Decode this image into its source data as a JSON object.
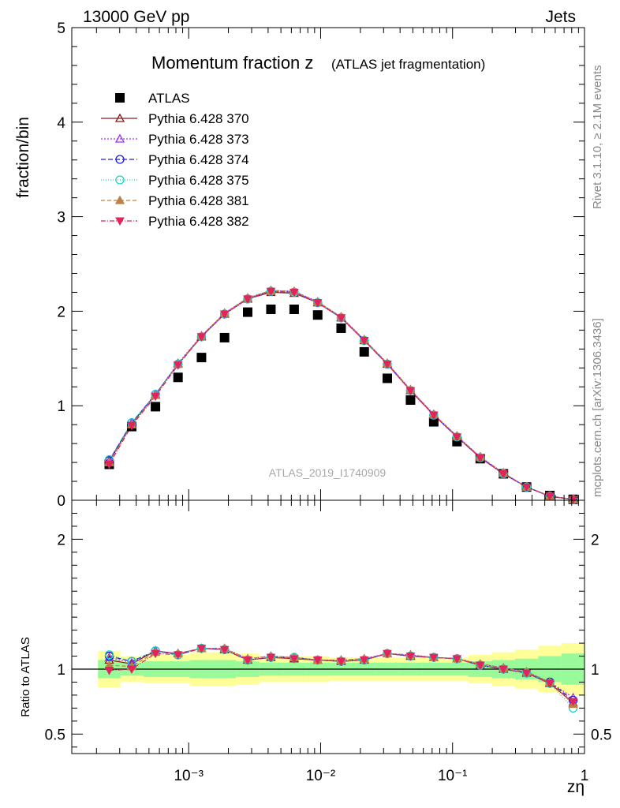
{
  "header": {
    "left": "13000 GeV pp",
    "right": "Jets",
    "side_top": "Rivet 3.1.10, ≥ 2.1M events",
    "side_bottom": "mcplots.cern.ch [arXiv:1306.3436]"
  },
  "colors": {
    "data": "#000000",
    "p370": "#8b1a1a",
    "p373": "#9b30ff",
    "p374": "#1c1ce0",
    "p375": "#11d6c4",
    "p381": "#b98348",
    "p382": "#e3245c",
    "band_inner": "#98fa98",
    "band_outer": "#ffff99"
  },
  "chart_data": [
    {
      "type": "scatter",
      "title": "Momentum fraction z",
      "title_suffix": "(ATLAS jet fragmentation)",
      "ylabel": "fraction/bin",
      "xlabel": "zη",
      "watermark": "ATLAS_2019_I1740909",
      "xscale": "log",
      "xlim": [
        0.00013,
        1
      ],
      "ylim": [
        0,
        5
      ],
      "yticks": [
        "0",
        "1",
        "2",
        "3",
        "4",
        "5"
      ],
      "xticks": [
        "10⁻³",
        "10⁻²",
        "10⁻¹",
        "1"
      ],
      "legend_position": "top-left",
      "x": [
        0.00025,
        0.00037,
        0.00056,
        0.00083,
        0.00125,
        0.00187,
        0.0028,
        0.0042,
        0.0063,
        0.0095,
        0.0143,
        0.0214,
        0.032,
        0.048,
        0.072,
        0.108,
        0.162,
        0.243,
        0.364,
        0.546,
        0.82
      ],
      "series": [
        {
          "name": "ATLAS",
          "key": "data",
          "marker": "square",
          "values": [
            0.38,
            0.78,
            0.99,
            1.3,
            1.51,
            1.72,
            1.99,
            2.02,
            2.02,
            1.96,
            1.82,
            1.57,
            1.29,
            1.06,
            0.83,
            0.62,
            0.44,
            0.28,
            0.14,
            0.05,
            0.01
          ]
        },
        {
          "name": "Pythia 6.428 370",
          "key": "p370",
          "marker": "triangle-open",
          "dash": "",
          "values": [
            0.41,
            0.81,
            1.12,
            1.44,
            1.73,
            1.97,
            2.13,
            2.2,
            2.19,
            2.09,
            1.93,
            1.69,
            1.44,
            1.16,
            0.9,
            0.67,
            0.45,
            0.28,
            0.14,
            0.04,
            0.008
          ]
        },
        {
          "name": "Pythia 6.428 373",
          "key": "p373",
          "marker": "triangle-open",
          "dash": "2,2",
          "values": [
            0.42,
            0.82,
            1.12,
            1.45,
            1.74,
            1.98,
            2.14,
            2.22,
            2.21,
            2.1,
            1.94,
            1.7,
            1.45,
            1.17,
            0.91,
            0.68,
            0.46,
            0.29,
            0.14,
            0.045,
            0.008
          ]
        },
        {
          "name": "Pythia 6.428 374",
          "key": "p374",
          "marker": "circle-open",
          "dash": "6,3",
          "values": [
            0.42,
            0.82,
            1.12,
            1.44,
            1.73,
            1.97,
            2.13,
            2.21,
            2.2,
            2.09,
            1.93,
            1.69,
            1.44,
            1.16,
            0.9,
            0.67,
            0.45,
            0.28,
            0.14,
            0.045,
            0.008
          ]
        },
        {
          "name": "Pythia 6.428 375",
          "key": "p375",
          "marker": "circle-open",
          "dash": "1,2",
          "values": [
            0.43,
            0.82,
            1.12,
            1.44,
            1.73,
            1.97,
            2.13,
            2.21,
            2.2,
            2.09,
            1.93,
            1.69,
            1.44,
            1.16,
            0.9,
            0.67,
            0.45,
            0.28,
            0.14,
            0.044,
            0.007
          ]
        },
        {
          "name": "Pythia 6.428 381",
          "key": "p381",
          "marker": "triangle-filled",
          "dash": "5,3",
          "values": [
            0.4,
            0.8,
            1.11,
            1.44,
            1.74,
            1.98,
            2.14,
            2.22,
            2.21,
            2.1,
            1.94,
            1.7,
            1.45,
            1.17,
            0.91,
            0.68,
            0.46,
            0.29,
            0.14,
            0.044,
            0.008
          ]
        },
        {
          "name": "Pythia 6.428 382",
          "key": "p382",
          "marker": "triangle-down-filled",
          "dash": "6,2,1,2",
          "values": [
            0.38,
            0.79,
            1.1,
            1.43,
            1.73,
            1.97,
            2.13,
            2.21,
            2.2,
            2.09,
            1.93,
            1.69,
            1.44,
            1.16,
            0.9,
            0.67,
            0.45,
            0.28,
            0.14,
            0.044,
            0.008
          ]
        }
      ]
    },
    {
      "type": "scatter",
      "ylabel": "Ratio to ATLAS",
      "xlabel": "zη",
      "xscale": "log",
      "xlim": [
        0.00013,
        1
      ],
      "ylim": [
        0.35,
        2.3
      ],
      "yticks": [
        "0.5",
        "1",
        "2"
      ],
      "reference_line": 1,
      "bands": {
        "inner": [
          0.07,
          0.05,
          0.06,
          0.06,
          0.07,
          0.07,
          0.06,
          0.05,
          0.05,
          0.05,
          0.05,
          0.05,
          0.05,
          0.05,
          0.05,
          0.05,
          0.06,
          0.07,
          0.08,
          0.1,
          0.12
        ],
        "outer": [
          0.14,
          0.1,
          0.11,
          0.11,
          0.13,
          0.13,
          0.12,
          0.1,
          0.1,
          0.1,
          0.09,
          0.09,
          0.09,
          0.09,
          0.09,
          0.09,
          0.11,
          0.13,
          0.15,
          0.18,
          0.2
        ]
      },
      "series": [
        {
          "name": "Pythia 6.428 370",
          "key": "p370",
          "marker": "triangle-open",
          "dash": "",
          "values": [
            1.07,
            1.04,
            1.14,
            1.12,
            1.16,
            1.15,
            1.07,
            1.09,
            1.08,
            1.07,
            1.06,
            1.07,
            1.12,
            1.1,
            1.09,
            1.08,
            1.03,
            1.0,
            0.97,
            0.89,
            0.74
          ]
        },
        {
          "name": "Pythia 6.428 373",
          "key": "p373",
          "marker": "triangle-open",
          "dash": "2,2",
          "values": [
            1.09,
            1.05,
            1.14,
            1.12,
            1.16,
            1.16,
            1.08,
            1.1,
            1.09,
            1.07,
            1.07,
            1.08,
            1.12,
            1.11,
            1.09,
            1.08,
            1.04,
            1.01,
            0.98,
            0.9,
            0.78
          ]
        },
        {
          "name": "Pythia 6.428 374",
          "key": "p374",
          "marker": "circle-open",
          "dash": "6,3",
          "values": [
            1.1,
            1.06,
            1.14,
            1.11,
            1.16,
            1.15,
            1.07,
            1.09,
            1.09,
            1.07,
            1.06,
            1.07,
            1.12,
            1.1,
            1.09,
            1.08,
            1.03,
            1.0,
            0.97,
            0.9,
            0.76
          ]
        },
        {
          "name": "Pythia 6.428 375",
          "key": "p375",
          "marker": "circle-open",
          "dash": "1,2",
          "values": [
            1.11,
            1.06,
            1.14,
            1.11,
            1.16,
            1.15,
            1.07,
            1.09,
            1.09,
            1.07,
            1.06,
            1.07,
            1.12,
            1.1,
            1.09,
            1.08,
            1.03,
            1.0,
            0.97,
            0.89,
            0.7
          ]
        },
        {
          "name": "Pythia 6.428 381",
          "key": "p381",
          "marker": "triangle-filled",
          "dash": "5,3",
          "values": [
            1.03,
            1.02,
            1.13,
            1.12,
            1.16,
            1.16,
            1.08,
            1.1,
            1.09,
            1.07,
            1.07,
            1.08,
            1.12,
            1.11,
            1.09,
            1.08,
            1.04,
            1.01,
            0.98,
            0.9,
            0.73
          ]
        },
        {
          "name": "Pythia 6.428 382",
          "key": "p382",
          "marker": "triangle-down-filled",
          "dash": "6,2,1,2",
          "values": [
            0.99,
            1.0,
            1.12,
            1.11,
            1.16,
            1.15,
            1.07,
            1.09,
            1.08,
            1.07,
            1.06,
            1.07,
            1.12,
            1.1,
            1.09,
            1.08,
            1.03,
            1.0,
            0.97,
            0.89,
            0.75
          ]
        }
      ]
    }
  ]
}
